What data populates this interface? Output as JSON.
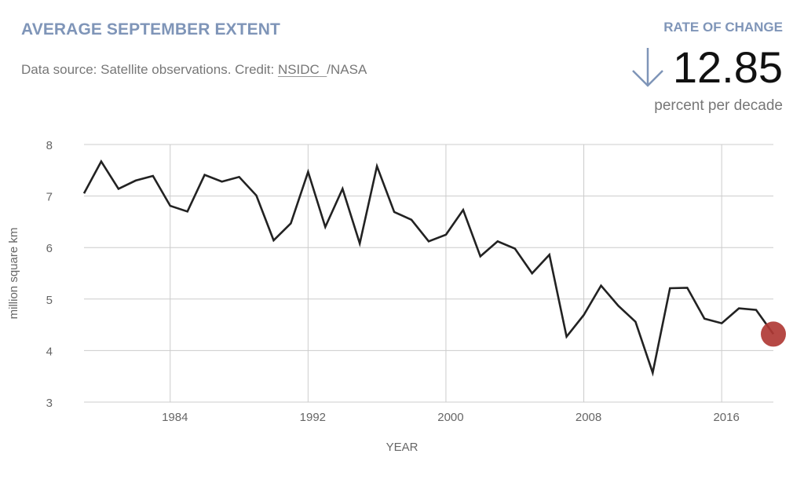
{
  "header": {
    "title": "AVERAGE SEPTEMBER EXTENT",
    "source_prefix": "Data source: Satellite observations. Credit: ",
    "source_link": "NSIDC",
    "source_suffix": "/NASA"
  },
  "rate": {
    "label": "RATE OF CHANGE",
    "direction_icon": "arrow-down-icon",
    "value": "12.85",
    "unit": "percent per decade",
    "color": "#7f95b8"
  },
  "chart_data": {
    "type": "line",
    "xlabel": "YEAR",
    "ylabel": "million square km",
    "xlim": [
      1979,
      2019
    ],
    "ylim": [
      3,
      8
    ],
    "xticks": [
      1984,
      1992,
      2000,
      2008,
      2016
    ],
    "yticks": [
      3,
      4,
      5,
      6,
      7,
      8
    ],
    "grid": true,
    "line_color": "#222222",
    "highlight_color": "#b03a35",
    "series": [
      {
        "x": [
          1979,
          1980,
          1981,
          1982,
          1983,
          1984,
          1985,
          1986,
          1987,
          1988,
          1989,
          1990,
          1991,
          1992,
          1993,
          1994,
          1995,
          1996,
          1997,
          1998,
          1999,
          2000,
          2001,
          2002,
          2003,
          2004,
          2005,
          2006,
          2007,
          2008,
          2009,
          2010,
          2011,
          2012,
          2013,
          2014,
          2015,
          2016,
          2017,
          2018,
          2019
        ],
        "values": [
          7.05,
          7.67,
          7.14,
          7.3,
          7.39,
          6.81,
          6.7,
          7.41,
          7.28,
          7.37,
          7.01,
          6.14,
          6.47,
          7.47,
          6.4,
          7.14,
          6.08,
          7.58,
          6.69,
          6.54,
          6.12,
          6.25,
          6.73,
          5.83,
          6.12,
          5.98,
          5.5,
          5.86,
          4.27,
          4.69,
          5.26,
          4.87,
          4.56,
          3.57,
          5.21,
          5.22,
          4.62,
          4.53,
          4.82,
          4.79,
          4.32
        ]
      }
    ],
    "highlight_point": {
      "x": 2019,
      "y": 4.32
    }
  }
}
